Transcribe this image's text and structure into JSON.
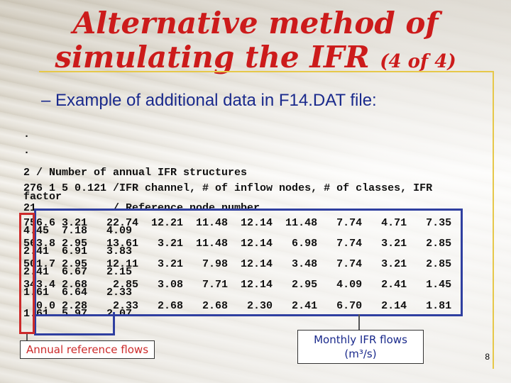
{
  "slide": {
    "title_line1": "Alternative method of",
    "title_line2": "simulating the IFR",
    "title_suffix": "(4 of 4)",
    "subtitle": "– Example of additional data in F14.DAT file:",
    "code_lines": [
      ".",
      ".",
      "2 / Number of annual IFR structures",
      "276 1 5 0.121 /IFR channel, # of inflow nodes, # of classes, IFR",
      "factor",
      "21            / Reference node number",
      "756.6 3.21   22.74  12.21  11.48  12.14  11.48   7.74   4.71   7.35",
      "4.45  7.18   4.09",
      "563.8 2.95   13.61   3.21  11.48  12.14   6.98   7.74   3.21   2.85",
      "2.41  6.91   3.83",
      "501.7 2.95   12.11   3.21   7.98  12.14   3.48   7.74   3.21   2.85",
      "2.41  6.67   2.15",
      "343.4 2.68    2.85   3.08   7.71  12.14   2.95   4.09   2.41   1.45",
      "1.61  6.64   2.33",
      "  0.0 2.28    2.33   2.68   2.68   2.30   2.41   6.70   2.14   1.81",
      "1.61  5.97   2.07"
    ],
    "label_annual": "Annual reference flows",
    "label_monthly_line1": "Monthly IFR flows",
    "label_monthly_line2": "(m³/s)",
    "page_number": "8",
    "colors": {
      "title": "#cc1b1b",
      "subtitle": "#1a2a8c",
      "box": "#2f3fa0",
      "annual_box": "#cc2a2a",
      "rule": "#e6c84a"
    }
  }
}
